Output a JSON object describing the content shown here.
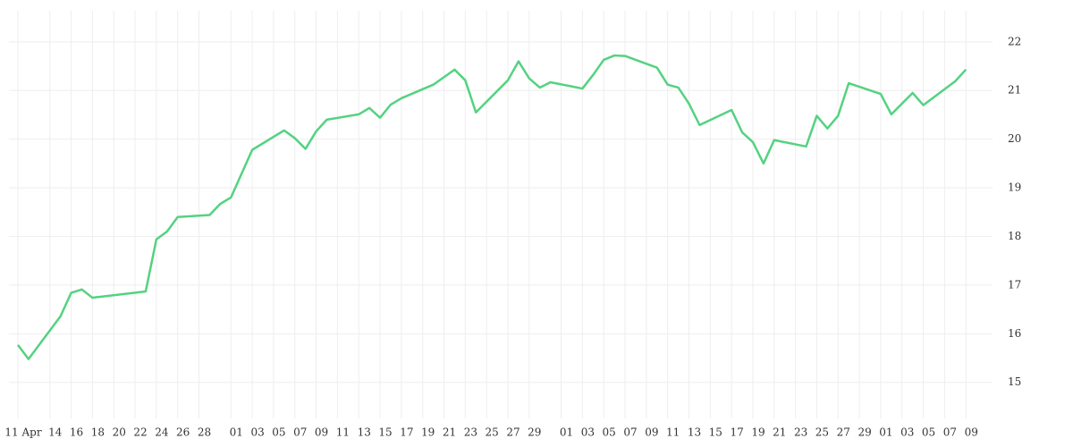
{
  "chart_data": {
    "type": "line",
    "x": [
      0,
      1,
      4,
      5,
      6,
      7,
      12,
      13,
      14,
      15,
      18,
      19,
      20,
      22,
      25,
      26,
      27,
      28,
      29,
      32,
      33,
      34,
      35,
      36,
      39,
      41,
      42,
      43,
      46,
      47,
      48,
      49,
      50,
      53,
      54,
      55,
      56,
      57,
      60,
      61,
      62,
      63,
      64,
      67,
      68,
      69,
      70,
      71,
      74,
      75,
      76,
      77,
      78,
      81,
      82,
      84,
      85,
      88,
      89
    ],
    "series": [
      {
        "color": "#54d281",
        "values": [
          15.77,
          15.48,
          16.36,
          16.84,
          16.91,
          16.74,
          16.87,
          17.94,
          18.1,
          18.4,
          18.44,
          18.67,
          18.8,
          19.78,
          20.18,
          20.02,
          19.8,
          20.16,
          20.4,
          20.51,
          20.64,
          20.44,
          20.71,
          20.84,
          21.12,
          21.43,
          21.21,
          20.55,
          21.21,
          21.6,
          21.25,
          21.06,
          21.17,
          21.04,
          21.32,
          21.63,
          21.72,
          21.71,
          21.47,
          21.12,
          21.06,
          20.73,
          20.29,
          20.6,
          20.14,
          19.94,
          19.5,
          19.98,
          19.85,
          20.48,
          20.22,
          20.48,
          21.15,
          20.93,
          20.51,
          20.95,
          20.7,
          21.19,
          21.43
        ]
      }
    ],
    "xlim": [
      -0.84,
      91.5
    ],
    "xticks": [
      {
        "value": 0,
        "label": "11 Apr"
      },
      {
        "value": 3,
        "label": "14"
      },
      {
        "value": 5,
        "label": "16"
      },
      {
        "value": 7,
        "label": "18"
      },
      {
        "value": 9,
        "label": "20"
      },
      {
        "value": 11,
        "label": "22"
      },
      {
        "value": 13,
        "label": "24"
      },
      {
        "value": 15,
        "label": "26"
      },
      {
        "value": 17,
        "label": "28"
      },
      {
        "value": 20,
        "label": "01"
      },
      {
        "value": 22,
        "label": "03"
      },
      {
        "value": 24,
        "label": "05"
      },
      {
        "value": 26,
        "label": "07"
      },
      {
        "value": 28,
        "label": "09"
      },
      {
        "value": 30,
        "label": "11"
      },
      {
        "value": 32,
        "label": "13"
      },
      {
        "value": 34,
        "label": "15"
      },
      {
        "value": 36,
        "label": "17"
      },
      {
        "value": 38,
        "label": "19"
      },
      {
        "value": 40,
        "label": "21"
      },
      {
        "value": 42,
        "label": "23"
      },
      {
        "value": 44,
        "label": "25"
      },
      {
        "value": 46,
        "label": "27"
      },
      {
        "value": 48,
        "label": "29"
      },
      {
        "value": 51,
        "label": "01"
      },
      {
        "value": 53,
        "label": "03"
      },
      {
        "value": 55,
        "label": "05"
      },
      {
        "value": 57,
        "label": "07"
      },
      {
        "value": 59,
        "label": "09"
      },
      {
        "value": 61,
        "label": "11"
      },
      {
        "value": 63,
        "label": "13"
      },
      {
        "value": 65,
        "label": "15"
      },
      {
        "value": 67,
        "label": "17"
      },
      {
        "value": 69,
        "label": "19"
      },
      {
        "value": 71,
        "label": "21"
      },
      {
        "value": 73,
        "label": "23"
      },
      {
        "value": 75,
        "label": "25"
      },
      {
        "value": 77,
        "label": "27"
      },
      {
        "value": 79,
        "label": "29"
      },
      {
        "value": 81,
        "label": "01"
      },
      {
        "value": 83,
        "label": "03"
      },
      {
        "value": 85,
        "label": "05"
      },
      {
        "value": 87,
        "label": "07"
      },
      {
        "value": 89,
        "label": "09"
      }
    ],
    "ylim": [
      14.26,
      22.64
    ],
    "yticks": [
      15,
      16,
      17,
      18,
      19,
      20,
      21,
      22
    ],
    "grid": true
  }
}
